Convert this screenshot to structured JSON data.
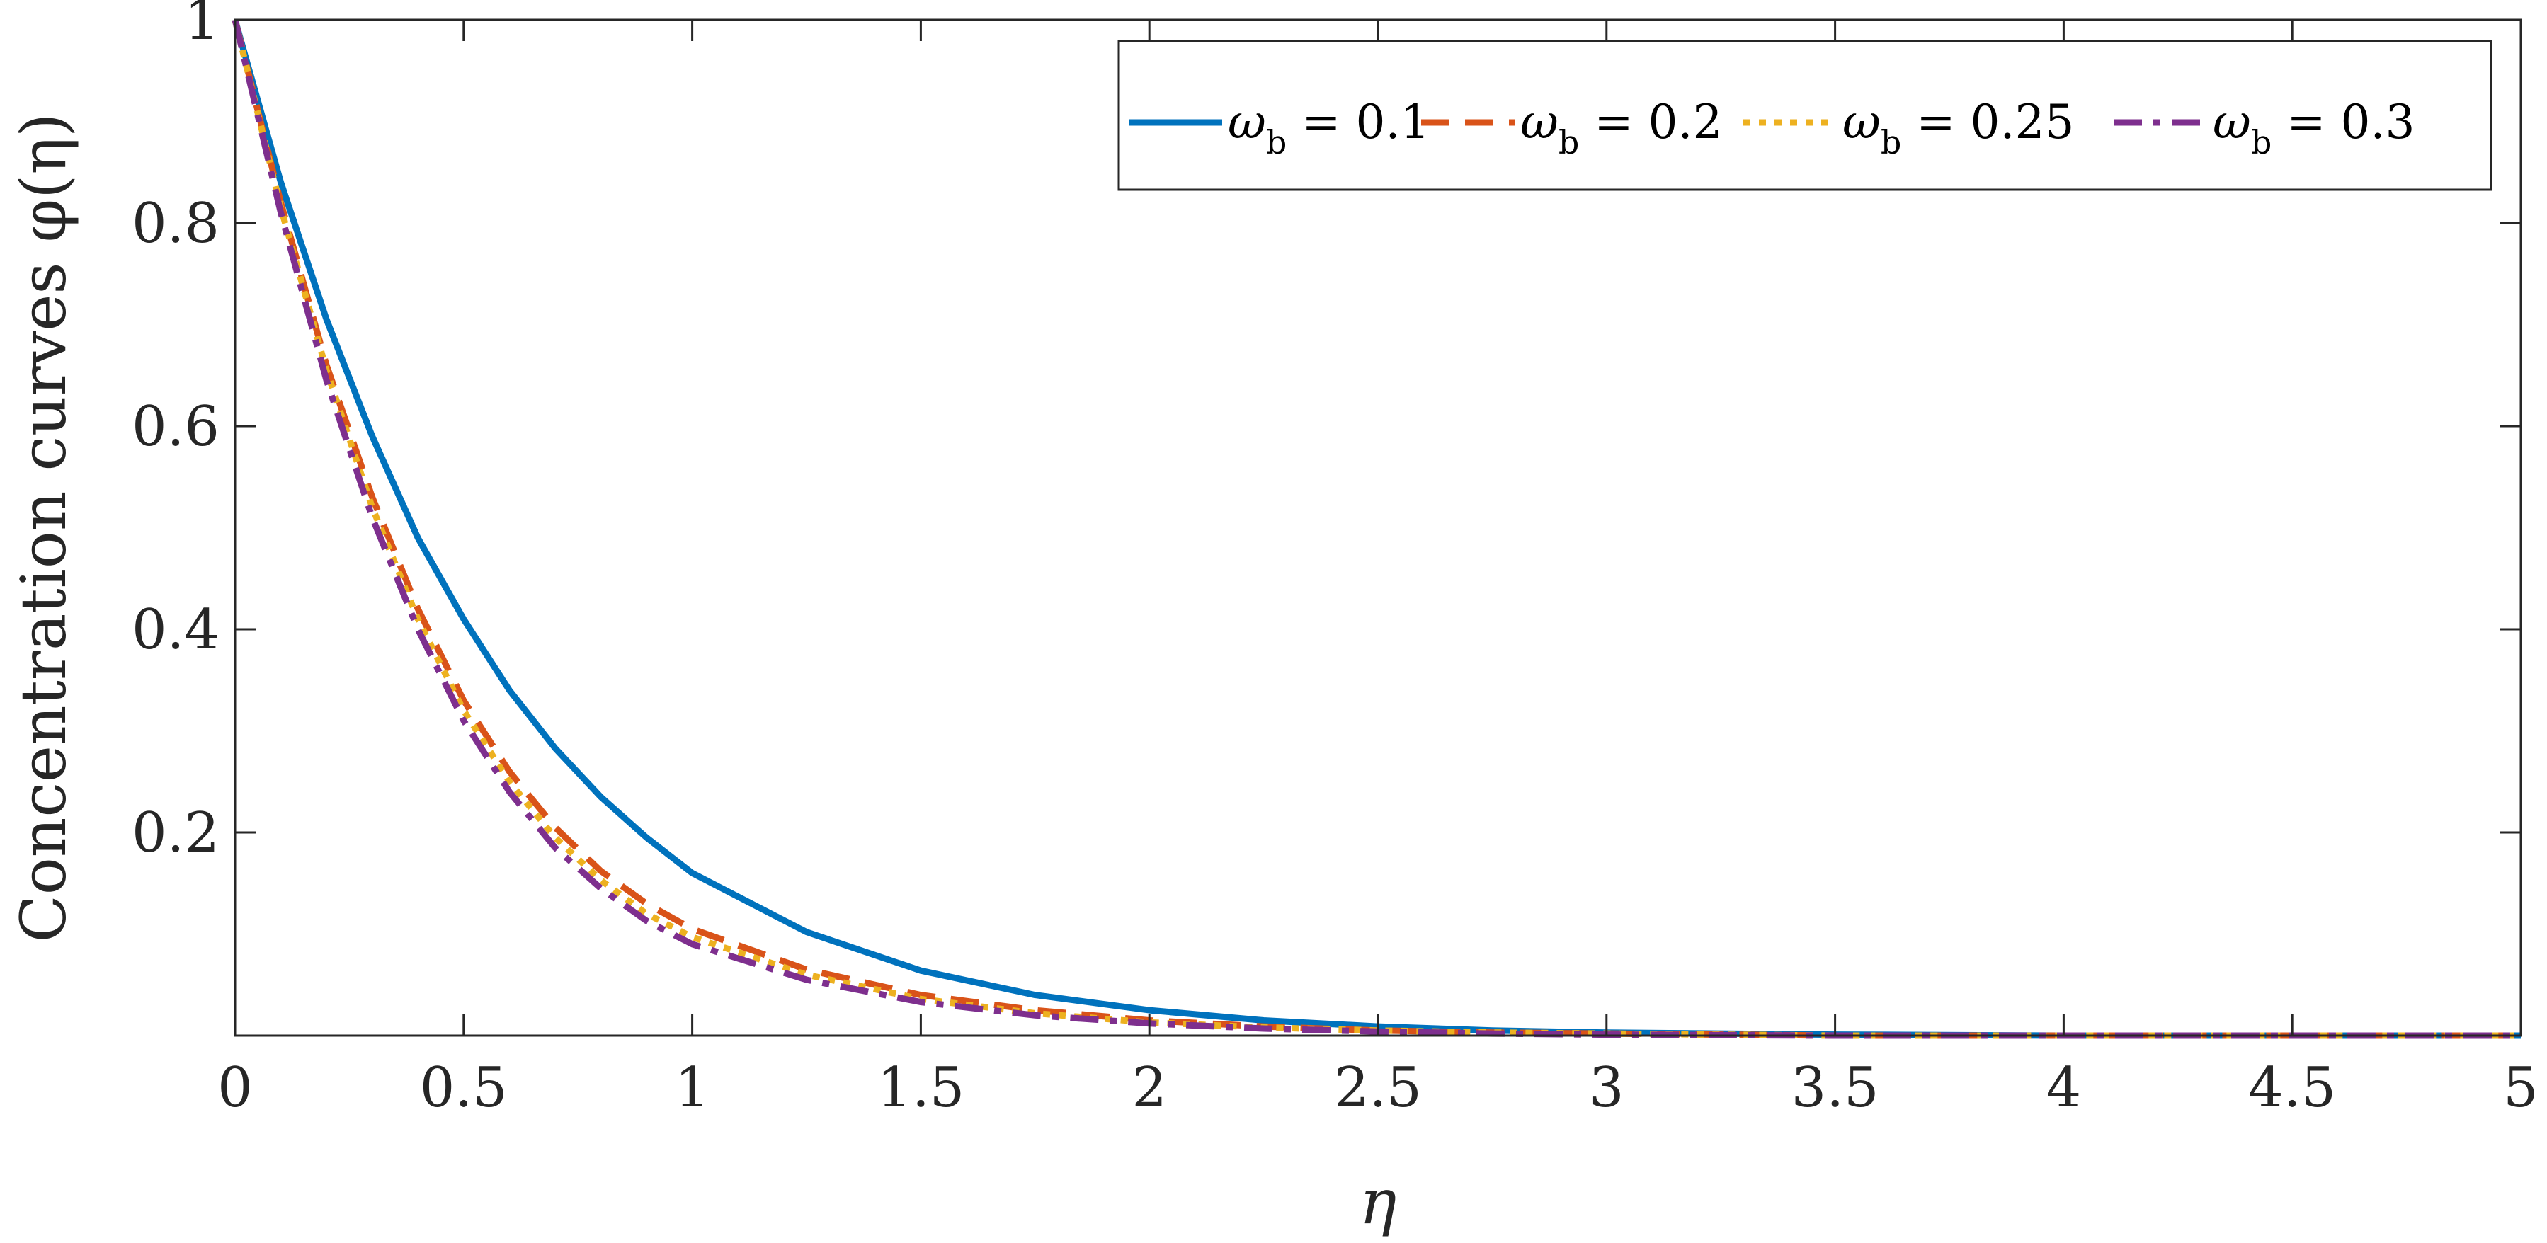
{
  "chart_data": {
    "type": "line",
    "title": "",
    "xlabel": "η",
    "ylabel": "Concentration curves φ(η)",
    "xlim": [
      0,
      5
    ],
    "ylim": [
      0,
      1
    ],
    "x_ticks": [
      "0",
      "0.5",
      "1",
      "1.5",
      "2",
      "2.5",
      "3",
      "3.5",
      "4",
      "4.5",
      "5"
    ],
    "y_ticks": [
      "0.2",
      "0.4",
      "0.6",
      "0.8",
      "1"
    ],
    "grid": false,
    "legend_placement": "top-right",
    "x": [
      0,
      0.1,
      0.2,
      0.3,
      0.4,
      0.5,
      0.6,
      0.7,
      0.8,
      0.9,
      1.0,
      1.25,
      1.5,
      1.75,
      2.0,
      2.25,
      2.5,
      2.75,
      3.0,
      3.5,
      4.0,
      4.5,
      5.0
    ],
    "series": [
      {
        "name": "ω_b = 0.1",
        "legend_symbol": "ω",
        "legend_sub": "b",
        "legend_value": " = 0.1",
        "color": "#0072BD",
        "style": "solid",
        "values": [
          1.0,
          0.84,
          0.705,
          0.59,
          0.49,
          0.41,
          0.34,
          0.283,
          0.235,
          0.195,
          0.16,
          0.102,
          0.064,
          0.04,
          0.025,
          0.015,
          0.009,
          0.005,
          0.003,
          0.001,
          0.0,
          0.0,
          0.0
        ]
      },
      {
        "name": "ω_b = 0.2",
        "legend_symbol": "ω",
        "legend_sub": "b",
        "legend_value": " = 0.2",
        "color": "#D95319",
        "style": "dashed",
        "values": [
          1.0,
          0.82,
          0.66,
          0.53,
          0.42,
          0.33,
          0.26,
          0.205,
          0.162,
          0.13,
          0.105,
          0.065,
          0.04,
          0.025,
          0.015,
          0.009,
          0.005,
          0.003,
          0.002,
          0.0,
          0.0,
          0.0,
          0.0
        ]
      },
      {
        "name": "ω_b = 0.25",
        "legend_symbol": "ω",
        "legend_sub": "b",
        "legend_value": " = 0.25",
        "color": "#EDB120",
        "style": "dotted",
        "values": [
          1.0,
          0.815,
          0.655,
          0.52,
          0.41,
          0.32,
          0.25,
          0.195,
          0.153,
          0.12,
          0.097,
          0.06,
          0.036,
          0.022,
          0.013,
          0.008,
          0.005,
          0.003,
          0.002,
          0.0,
          0.0,
          0.0,
          0.0
        ]
      },
      {
        "name": "ω_b = 0.3",
        "legend_symbol": "ω",
        "legend_sub": "b",
        "legend_value": " = 0.3",
        "color": "#7E2F8E",
        "style": "dashdot",
        "values": [
          1.0,
          0.81,
          0.645,
          0.51,
          0.4,
          0.31,
          0.24,
          0.185,
          0.145,
          0.113,
          0.09,
          0.055,
          0.033,
          0.02,
          0.012,
          0.007,
          0.004,
          0.002,
          0.001,
          0.0,
          0.0,
          0.0,
          0.0
        ]
      }
    ]
  }
}
